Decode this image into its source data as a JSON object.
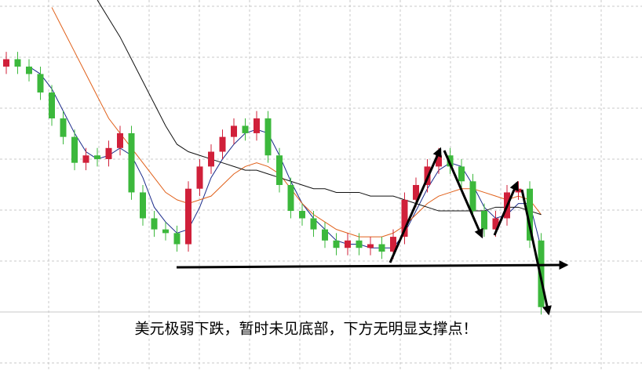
{
  "chart_data": {
    "type": "candlestick",
    "caption": "美元极弱下跌，暂时未见底部，下方无明显支撑点！",
    "ylim": [
      0,
      100
    ],
    "up_color": "#d0203a",
    "down_color": "#3cb83c",
    "open": [
      82,
      84,
      82,
      80,
      75,
      68,
      63,
      56,
      58,
      57,
      60,
      64,
      48,
      41,
      38,
      37,
      34,
      49,
      55,
      59,
      63,
      66,
      64,
      68,
      58,
      50,
      43,
      41,
      38,
      35,
      33,
      35,
      33,
      34,
      32,
      36,
      46,
      50,
      55,
      58,
      55,
      51,
      43,
      38,
      41,
      48,
      49,
      35
    ],
    "high": [
      86,
      86,
      84,
      82,
      77,
      70,
      65,
      60,
      60,
      62,
      66,
      66,
      50,
      43,
      40,
      39,
      51,
      57,
      61,
      65,
      68,
      68,
      70,
      70,
      60,
      52,
      45,
      43,
      40,
      37,
      37,
      37,
      36,
      36,
      38,
      48,
      52,
      57,
      60,
      60,
      57,
      53,
      45,
      43,
      50,
      51,
      51,
      37
    ],
    "low": [
      80,
      80,
      78,
      73,
      66,
      61,
      54,
      54,
      55,
      55,
      58,
      46,
      39,
      36,
      35,
      32,
      32,
      47,
      53,
      57,
      61,
      62,
      62,
      56,
      48,
      41,
      39,
      36,
      33,
      31,
      31,
      31,
      31,
      30,
      30,
      34,
      44,
      48,
      53,
      53,
      49,
      41,
      36,
      36,
      39,
      46,
      33,
      15
    ],
    "close": [
      84,
      82,
      80,
      75,
      68,
      63,
      56,
      58,
      57,
      60,
      64,
      48,
      41,
      38,
      37,
      34,
      49,
      55,
      59,
      63,
      66,
      64,
      68,
      58,
      50,
      43,
      41,
      38,
      35,
      33,
      35,
      33,
      34,
      32,
      36,
      46,
      50,
      55,
      58,
      55,
      51,
      43,
      38,
      41,
      48,
      49,
      35,
      17
    ],
    "lines": [
      {
        "color": "#1a2a8a",
        "values": [
          null,
          null,
          82,
          80,
          76,
          70,
          64,
          59,
          57,
          58,
          60,
          58,
          52,
          44,
          40,
          37,
          38,
          44,
          52,
          57,
          61,
          64,
          65,
          64,
          58,
          51,
          45,
          41,
          38,
          35,
          34,
          34,
          33,
          33,
          33,
          37,
          43,
          49,
          54,
          56,
          55,
          50,
          44,
          41,
          42,
          45,
          45,
          33
        ]
      },
      {
        "color": "#e0601a",
        "values": [
          null,
          null,
          null,
          null,
          98,
          92,
          86,
          80,
          74,
          68,
          64,
          60,
          56,
          52,
          48,
          46,
          45,
          46,
          47,
          50,
          53,
          55,
          56,
          55,
          53,
          49,
          45,
          42,
          40,
          38,
          37,
          36,
          36,
          36,
          37,
          39,
          42,
          45,
          47,
          48,
          49,
          49,
          48,
          47,
          46,
          47,
          46,
          42
        ]
      },
      {
        "color": "#111111",
        "values": [
          null,
          null,
          null,
          null,
          null,
          null,
          null,
          null,
          100,
          95,
          90,
          84,
          78,
          72,
          66,
          61,
          59,
          58,
          57,
          56,
          55,
          54,
          54,
          53,
          52,
          51,
          50,
          49,
          49,
          48,
          48,
          48,
          47,
          47,
          47,
          46,
          45,
          44,
          43,
          43,
          43,
          43,
          43,
          44,
          44,
          44,
          43,
          42
        ]
      }
    ]
  }
}
